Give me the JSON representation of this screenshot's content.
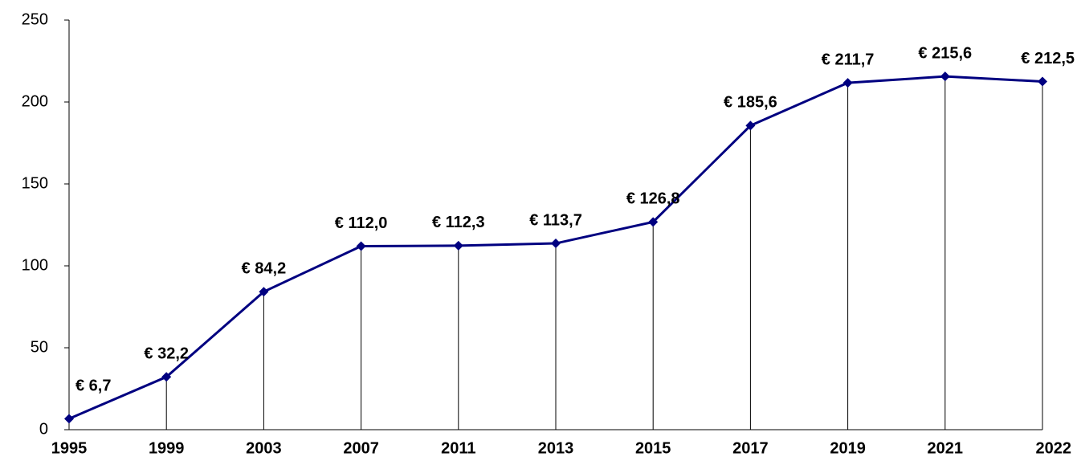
{
  "chart_data": {
    "type": "line",
    "categories": [
      "1995",
      "1999",
      "2003",
      "2007",
      "2011",
      "2013",
      "2015",
      "2017",
      "2019",
      "2021",
      "2022"
    ],
    "values": [
      6.7,
      32.2,
      84.2,
      112.0,
      112.3,
      113.7,
      126.8,
      185.6,
      211.7,
      215.6,
      212.5
    ],
    "value_labels": [
      "€ 6,7",
      "€ 32,2",
      "€ 84,2",
      "€ 112,0",
      "€ 112,3",
      "€ 113,7",
      "€ 126,8",
      "€ 185,6",
      "€ 211,7",
      "€ 215,6",
      "€ 212,5"
    ],
    "color": "#000080",
    "ylim": [
      0,
      250
    ],
    "yticks": [
      0,
      50,
      100,
      150,
      200,
      250
    ],
    "grid": false
  }
}
